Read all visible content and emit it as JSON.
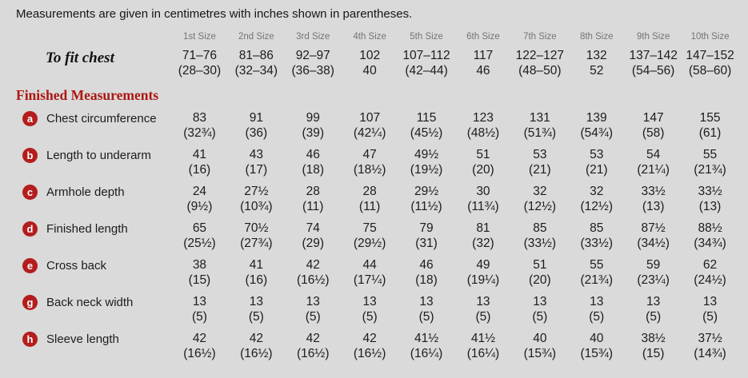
{
  "title": "Measurements are given in centimetres with inches shown in parentheses.",
  "colors": {
    "background": "#d9dad9",
    "badge_red": "#b41d1d",
    "heading_red": "#ac1712",
    "header_gray": "#747474",
    "text": "#1c1c1c"
  },
  "table": {
    "size_headers": [
      "1st Size",
      "2nd Size",
      "3rd Size",
      "4th Size",
      "5th Size",
      "6th Size",
      "7th Size",
      "8th Size",
      "9th Size",
      "10th Size"
    ],
    "to_fit_chest": {
      "label": "To fit chest",
      "cm": [
        "71–76",
        "81–86",
        "92–97",
        "102",
        "107–112",
        "117",
        "122–127",
        "132",
        "137–142",
        "147–152"
      ],
      "inches": [
        "(28–30)",
        "(32–34)",
        "(36–38)",
        "40",
        "(42–44)",
        "46",
        "(48–50)",
        "52",
        "(54–56)",
        "(58–60)"
      ]
    },
    "section_heading": "Finished Measurements",
    "rows": [
      {
        "badge": "a",
        "label": "Chest circumference",
        "cm": [
          "83",
          "91",
          "99",
          "107",
          "115",
          "123",
          "131",
          "139",
          "147",
          "155"
        ],
        "inches": [
          "(32¾)",
          "(36)",
          "(39)",
          "(42¼)",
          "(45½)",
          "(48½)",
          "(51¾)",
          "(54¾)",
          "(58)",
          "(61)"
        ]
      },
      {
        "badge": "b",
        "label": "Length to underarm",
        "cm": [
          "41",
          "43",
          "46",
          "47",
          "49½",
          "51",
          "53",
          "53",
          "54",
          "55"
        ],
        "inches": [
          "(16)",
          "(17)",
          "(18)",
          "(18½)",
          "(19½)",
          "(20)",
          "(21)",
          "(21)",
          "(21¼)",
          "(21¾)"
        ]
      },
      {
        "badge": "c",
        "label": "Armhole depth",
        "cm": [
          "24",
          "27½",
          "28",
          "28",
          "29½",
          "30",
          "32",
          "32",
          "33½",
          "33½"
        ],
        "inches": [
          "(9½)",
          "(10¾)",
          "(11)",
          "(11)",
          "(11½)",
          "(11¾)",
          "(12½)",
          "(12½)",
          "(13)",
          "(13)"
        ]
      },
      {
        "badge": "d",
        "label": "Finished length",
        "cm": [
          "65",
          "70½",
          "74",
          "75",
          "79",
          "81",
          "85",
          "85",
          "87½",
          "88½"
        ],
        "inches": [
          "(25½)",
          "(27¾)",
          "(29)",
          "(29½)",
          "(31)",
          "(32)",
          "(33½)",
          "(33½)",
          "(34½)",
          "(34¾)"
        ]
      },
      {
        "badge": "e",
        "label": "Cross back",
        "cm": [
          "38",
          "41",
          "42",
          "44",
          "46",
          "49",
          "51",
          "55",
          "59",
          "62"
        ],
        "inches": [
          "(15)",
          "(16)",
          "(16½)",
          "(17¼)",
          "(18)",
          "(19¼)",
          "(20)",
          "(21¾)",
          "(23¼)",
          "(24½)"
        ]
      },
      {
        "badge": "g",
        "label": "Back neck width",
        "cm": [
          "13",
          "13",
          "13",
          "13",
          "13",
          "13",
          "13",
          "13",
          "13",
          "13"
        ],
        "inches": [
          "(5)",
          "(5)",
          "(5)",
          "(5)",
          "(5)",
          "(5)",
          "(5)",
          "(5)",
          "(5)",
          "(5)"
        ]
      },
      {
        "badge": "h",
        "label": "Sleeve length",
        "cm": [
          "42",
          "42",
          "42",
          "42",
          "41½",
          "41½",
          "40",
          "40",
          "38½",
          "37½"
        ],
        "inches": [
          "(16½)",
          "(16½)",
          "(16½)",
          "(16½)",
          "(16¼)",
          "(16¼)",
          "(15¾)",
          "(15¾)",
          "(15)",
          "(14¾)"
        ]
      }
    ]
  }
}
